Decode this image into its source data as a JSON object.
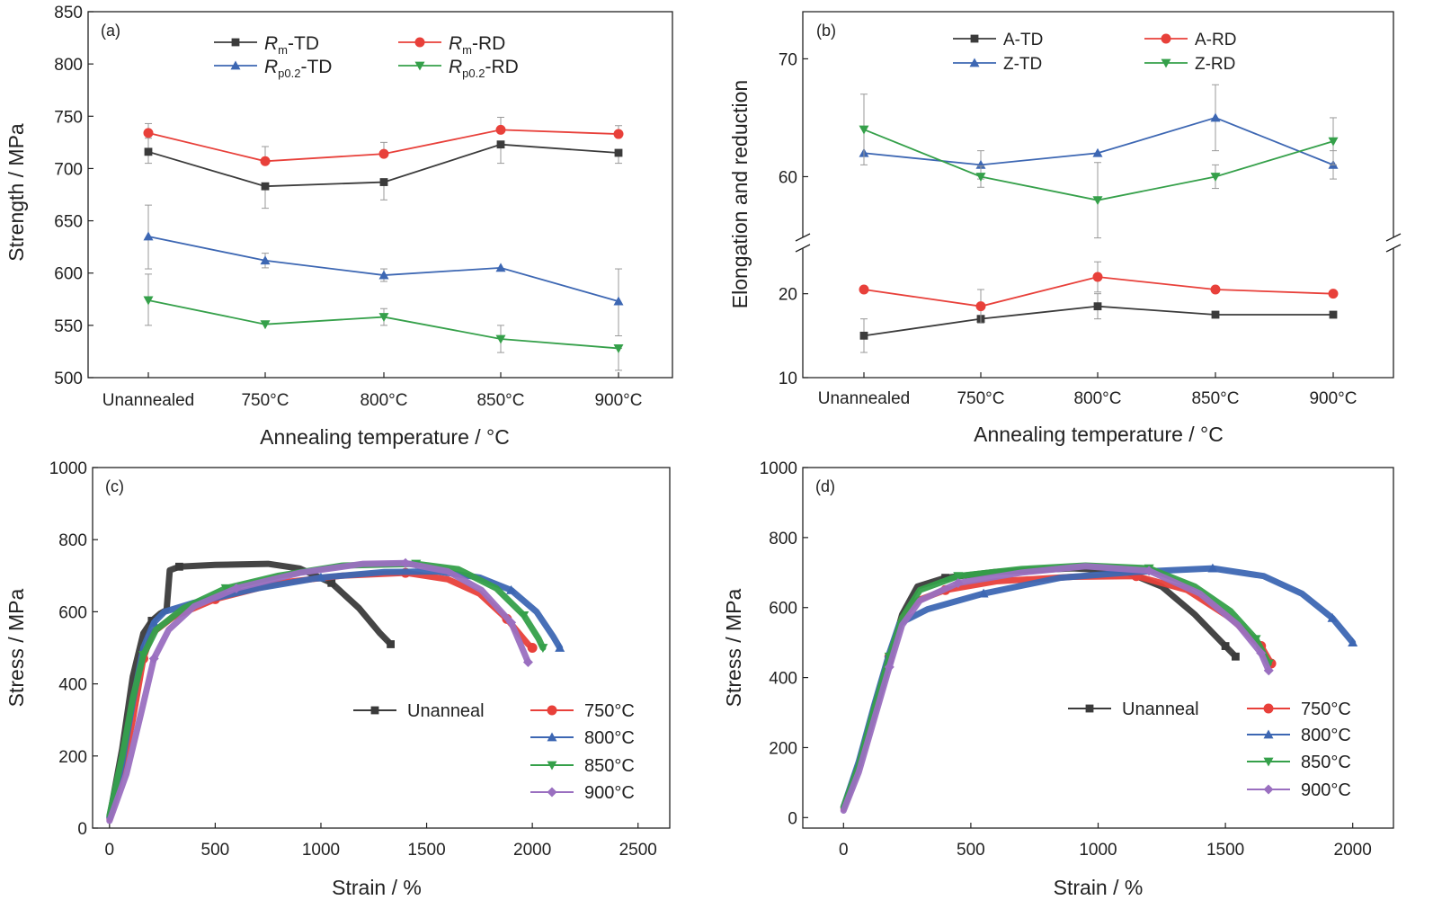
{
  "colors": {
    "black": "#3b3b3b",
    "red": "#e8403a",
    "blue": "#3d67b3",
    "green": "#35a04a",
    "purple": "#9a6fc0",
    "axis": "#222222",
    "error": "#999999"
  },
  "chart_data": [
    {
      "type": "line",
      "panel_label": "(a)",
      "xlabel": "Annealing temperature / °C",
      "ylabel": "Strength / MPa",
      "categories": [
        "Unannealed",
        "750°C",
        "800°C",
        "850°C",
        "900°C"
      ],
      "ylim": [
        500,
        850
      ],
      "yticks": [
        500,
        550,
        600,
        650,
        700,
        750,
        800,
        850
      ],
      "legend_position": "top",
      "series": [
        {
          "base": "R",
          "sub": "m",
          "tail": "-TD",
          "color": "#3b3b3b",
          "marker": "square",
          "values": [
            716,
            683,
            687,
            723,
            715
          ],
          "err_low": [
            11,
            21,
            17,
            18,
            10
          ],
          "err_high": [
            13,
            0,
            0,
            0,
            0
          ]
        },
        {
          "base": "R",
          "sub": "m",
          "tail": "-RD",
          "color": "#e8403a",
          "marker": "circle",
          "values": [
            734,
            707,
            714,
            737,
            733
          ],
          "err_low": [
            0,
            0,
            0,
            0,
            0
          ],
          "err_high": [
            9,
            14,
            11,
            12,
            8
          ]
        },
        {
          "base": "R",
          "sub": "p0.2",
          "tail": "-TD",
          "color": "#3d67b3",
          "marker": "triangle-up",
          "values": [
            635,
            612,
            598,
            605,
            573
          ],
          "err_low": [
            31,
            7,
            6,
            0,
            33
          ],
          "err_high": [
            30,
            7,
            6,
            0,
            31
          ]
        },
        {
          "base": "R",
          "sub": "p0.2",
          "tail": "-RD",
          "color": "#35a04a",
          "marker": "triangle-down",
          "values": [
            574,
            551,
            558,
            537,
            528
          ],
          "err_low": [
            24,
            0,
            8,
            13,
            21
          ],
          "err_high": [
            25,
            0,
            8,
            13,
            0
          ]
        }
      ]
    },
    {
      "type": "line",
      "panel_label": "(b)",
      "xlabel": "Annealing temperature / °C",
      "ylabel": "Elongation and reduction",
      "categories": [
        "Unannealed",
        "750°C",
        "800°C",
        "850°C",
        "900°C"
      ],
      "y_axis_break": true,
      "lower_ylim": [
        10,
        25
      ],
      "lower_yticks": [
        10,
        20
      ],
      "upper_ylim": [
        55,
        74
      ],
      "upper_yticks": [
        60,
        70
      ],
      "legend_position": "top",
      "series": [
        {
          "name": "A-TD",
          "color": "#3b3b3b",
          "marker": "square",
          "values": [
            15,
            17,
            18.5,
            17.5,
            17.5
          ],
          "err": [
            2,
            0,
            1.5,
            0,
            0
          ]
        },
        {
          "name": "A-RD",
          "color": "#e8403a",
          "marker": "circle",
          "values": [
            20.5,
            18.5,
            22,
            20.5,
            20
          ],
          "err": [
            0,
            2,
            1.8,
            0,
            0
          ]
        },
        {
          "name": "Z-TD",
          "color": "#3d67b3",
          "marker": "triangle-up",
          "values": [
            62,
            61,
            62,
            65,
            61
          ],
          "err": [
            0,
            1.2,
            0,
            2.8,
            1.2
          ]
        },
        {
          "name": "Z-RD",
          "color": "#35a04a",
          "marker": "triangle-down",
          "values": [
            64,
            60,
            58,
            60,
            63
          ],
          "err": [
            3,
            0.9,
            3.2,
            1,
            2
          ]
        }
      ]
    },
    {
      "type": "line",
      "panel_label": "(c)",
      "xlabel": "Strain / %",
      "ylabel": "Stress / MPa",
      "xlim": [
        -80,
        2650
      ],
      "xticks": [
        0,
        500,
        1000,
        1500,
        2000,
        2500
      ],
      "ylim": [
        0,
        1000
      ],
      "yticks": [
        0,
        200,
        400,
        600,
        800,
        1000
      ],
      "legend_position": "lower-right",
      "series": [
        {
          "name": "Unanneal",
          "color": "#3b3b3b",
          "marker": "square",
          "points": [
            [
              0,
              30
            ],
            [
              60,
              220
            ],
            [
              110,
              420
            ],
            [
              160,
              540
            ],
            [
              200,
              575
            ],
            [
              240,
              595
            ],
            [
              270,
              605
            ],
            [
              285,
              715
            ],
            [
              330,
              725
            ],
            [
              500,
              730
            ],
            [
              750,
              733
            ],
            [
              900,
              720
            ],
            [
              1050,
              680
            ],
            [
              1180,
              610
            ],
            [
              1280,
              540
            ],
            [
              1330,
              510
            ]
          ]
        },
        {
          "name": "750°C",
          "color": "#e8403a",
          "marker": "circle",
          "points": [
            [
              0,
              25
            ],
            [
              60,
              160
            ],
            [
              110,
              300
            ],
            [
              160,
              470
            ],
            [
              200,
              540
            ],
            [
              300,
              585
            ],
            [
              500,
              635
            ],
            [
              800,
              680
            ],
            [
              1100,
              700
            ],
            [
              1400,
              708
            ],
            [
              1600,
              690
            ],
            [
              1750,
              650
            ],
            [
              1880,
              580
            ],
            [
              1980,
              510
            ],
            [
              2000,
              500
            ]
          ]
        },
        {
          "name": "800°C",
          "color": "#3d67b3",
          "marker": "triangle-up",
          "points": [
            [
              0,
              30
            ],
            [
              60,
              180
            ],
            [
              110,
              350
            ],
            [
              160,
              500
            ],
            [
              210,
              570
            ],
            [
              260,
              600
            ],
            [
              400,
              625
            ],
            [
              700,
              665
            ],
            [
              1000,
              695
            ],
            [
              1300,
              710
            ],
            [
              1550,
              712
            ],
            [
              1750,
              695
            ],
            [
              1900,
              660
            ],
            [
              2020,
              600
            ],
            [
              2100,
              530
            ],
            [
              2130,
              500
            ]
          ]
        },
        {
          "name": "850°C",
          "color": "#35a04a",
          "marker": "triangle-down",
          "points": [
            [
              0,
              35
            ],
            [
              60,
              200
            ],
            [
              110,
              360
            ],
            [
              160,
              480
            ],
            [
              220,
              550
            ],
            [
              350,
              610
            ],
            [
              550,
              665
            ],
            [
              800,
              700
            ],
            [
              1100,
              728
            ],
            [
              1450,
              733
            ],
            [
              1650,
              718
            ],
            [
              1830,
              665
            ],
            [
              1960,
              590
            ],
            [
              2030,
              525
            ],
            [
              2050,
              500
            ]
          ]
        },
        {
          "name": "900°C",
          "color": "#9a6fc0",
          "marker": "diamond",
          "points": [
            [
              0,
              20
            ],
            [
              80,
              150
            ],
            [
              150,
              320
            ],
            [
              210,
              470
            ],
            [
              280,
              550
            ],
            [
              400,
              615
            ],
            [
              600,
              665
            ],
            [
              900,
              708
            ],
            [
              1200,
              733
            ],
            [
              1400,
              735
            ],
            [
              1600,
              712
            ],
            [
              1760,
              660
            ],
            [
              1900,
              570
            ],
            [
              1980,
              460
            ]
          ]
        }
      ]
    },
    {
      "type": "line",
      "panel_label": "(d)",
      "xlabel": "Strain / %",
      "ylabel": "Stress / MPa",
      "xlim": [
        -160,
        2160
      ],
      "xticks": [
        0,
        500,
        1000,
        1500,
        2000
      ],
      "ylim": [
        -30,
        1000
      ],
      "yticks": [
        0,
        200,
        400,
        600,
        800,
        1000
      ],
      "legend_position": "lower-right",
      "series": [
        {
          "name": "Unanneal",
          "color": "#3b3b3b",
          "marker": "square",
          "points": [
            [
              0,
              30
            ],
            [
              60,
              150
            ],
            [
              120,
              300
            ],
            [
              180,
              450
            ],
            [
              230,
              580
            ],
            [
              290,
              660
            ],
            [
              400,
              685
            ],
            [
              600,
              702
            ],
            [
              900,
              712
            ],
            [
              1100,
              705
            ],
            [
              1250,
              660
            ],
            [
              1380,
              580
            ],
            [
              1500,
              490
            ],
            [
              1540,
              460
            ]
          ]
        },
        {
          "name": "750°C",
          "color": "#e8403a",
          "marker": "circle",
          "points": [
            [
              0,
              25
            ],
            [
              60,
              150
            ],
            [
              120,
              310
            ],
            [
              180,
              460
            ],
            [
              230,
              570
            ],
            [
              290,
              620
            ],
            [
              400,
              650
            ],
            [
              600,
              675
            ],
            [
              900,
              688
            ],
            [
              1150,
              690
            ],
            [
              1350,
              650
            ],
            [
              1520,
              570
            ],
            [
              1640,
              490
            ],
            [
              1680,
              440
            ]
          ]
        },
        {
          "name": "800°C",
          "color": "#3d67b3",
          "marker": "triangle-up",
          "points": [
            [
              0,
              30
            ],
            [
              60,
              160
            ],
            [
              120,
              320
            ],
            [
              180,
              470
            ],
            [
              220,
              555
            ],
            [
              330,
              595
            ],
            [
              550,
              640
            ],
            [
              850,
              685
            ],
            [
              1150,
              702
            ],
            [
              1450,
              712
            ],
            [
              1650,
              690
            ],
            [
              1800,
              640
            ],
            [
              1920,
              570
            ],
            [
              2000,
              500
            ]
          ]
        },
        {
          "name": "850°C",
          "color": "#35a04a",
          "marker": "triangle-down",
          "points": [
            [
              0,
              30
            ],
            [
              60,
              150
            ],
            [
              120,
              310
            ],
            [
              180,
              460
            ],
            [
              230,
              570
            ],
            [
              300,
              650
            ],
            [
              450,
              690
            ],
            [
              700,
              710
            ],
            [
              950,
              720
            ],
            [
              1200,
              712
            ],
            [
              1380,
              660
            ],
            [
              1520,
              590
            ],
            [
              1620,
              510
            ],
            [
              1670,
              440
            ]
          ]
        },
        {
          "name": "900°C",
          "color": "#9a6fc0",
          "marker": "diamond",
          "points": [
            [
              0,
              20
            ],
            [
              60,
              130
            ],
            [
              120,
              280
            ],
            [
              180,
              430
            ],
            [
              230,
              550
            ],
            [
              300,
              620
            ],
            [
              450,
              670
            ],
            [
              700,
              700
            ],
            [
              950,
              718
            ],
            [
              1200,
              705
            ],
            [
              1400,
              640
            ],
            [
              1550,
              550
            ],
            [
              1640,
              470
            ],
            [
              1670,
              420
            ]
          ]
        }
      ]
    }
  ]
}
